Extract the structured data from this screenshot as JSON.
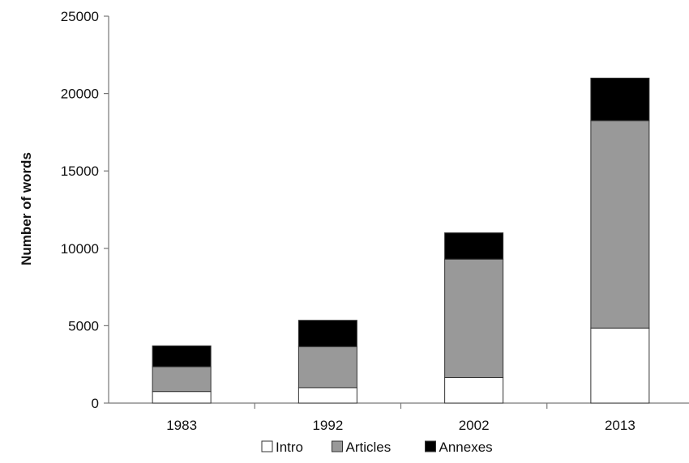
{
  "chart_data": {
    "type": "bar",
    "stacked": true,
    "categories": [
      "1983",
      "1992",
      "2002",
      "2013"
    ],
    "series": [
      {
        "name": "Intro",
        "values": [
          750,
          1000,
          1650,
          4850
        ],
        "color": "#ffffff"
      },
      {
        "name": "Articles",
        "values": [
          1600,
          2650,
          7650,
          13400
        ],
        "color": "#999999"
      },
      {
        "name": "Annexes",
        "values": [
          1350,
          1700,
          1700,
          2750
        ],
        "color": "#000000"
      }
    ],
    "title": "",
    "xlabel": "",
    "ylabel": "Number of words",
    "ylim": [
      0,
      25000
    ],
    "yticks": [
      "0",
      "5000",
      "10000",
      "15000",
      "20000",
      "25000"
    ],
    "grid": false,
    "legend_position": "bottom"
  }
}
